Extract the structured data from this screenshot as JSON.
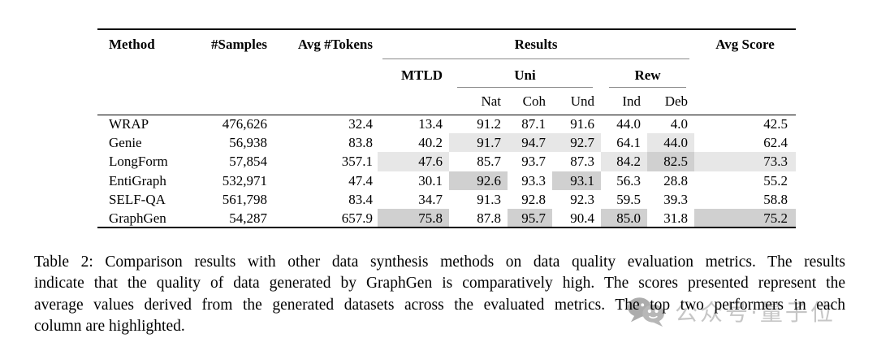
{
  "table": {
    "header": {
      "method": "Method",
      "samples": "#Samples",
      "tokens": "Avg #Tokens",
      "results": "Results",
      "avg_score": "Avg Score",
      "mtld": "MTLD",
      "uni": "Uni",
      "rew": "Rew",
      "sub": [
        "Nat",
        "Coh",
        "Und",
        "Ind",
        "Deb"
      ]
    },
    "columns": [
      "method",
      "samples",
      "tokens",
      "mtld",
      "nat",
      "coh",
      "und",
      "ind",
      "deb",
      "avg"
    ],
    "rows": [
      {
        "method": "WRAP",
        "samples": "476,626",
        "tokens": "32.4",
        "mtld": "13.4",
        "nat": "91.2",
        "coh": "87.1",
        "und": "91.6",
        "ind": "44.0",
        "deb": "4.0",
        "avg": "42.5",
        "hl": {}
      },
      {
        "method": "Genie",
        "samples": "56,938",
        "tokens": "83.8",
        "mtld": "40.2",
        "nat": "91.7",
        "coh": "94.7",
        "und": "92.7",
        "ind": "64.1",
        "deb": "44.0",
        "avg": "62.4",
        "hl": {
          "nat": 2,
          "coh": 2,
          "und": 2,
          "deb": 2
        }
      },
      {
        "method": "LongForm",
        "samples": "57,854",
        "tokens": "357.1",
        "mtld": "47.6",
        "nat": "85.7",
        "coh": "93.7",
        "und": "87.3",
        "ind": "84.2",
        "deb": "82.5",
        "avg": "73.3",
        "hl": {
          "mtld": 2,
          "ind": 2,
          "deb": 1,
          "avg": 2
        }
      },
      {
        "method": "EntiGraph",
        "samples": "532,971",
        "tokens": "47.4",
        "mtld": "30.1",
        "nat": "92.6",
        "coh": "93.3",
        "und": "93.1",
        "ind": "56.3",
        "deb": "28.8",
        "avg": "55.2",
        "hl": {
          "nat": 1,
          "und": 1
        }
      },
      {
        "method": "SELF-QA",
        "samples": "561,798",
        "tokens": "83.4",
        "mtld": "34.7",
        "nat": "91.3",
        "coh": "92.8",
        "und": "92.3",
        "ind": "59.5",
        "deb": "39.3",
        "avg": "58.8",
        "hl": {}
      },
      {
        "method": "GraphGen",
        "samples": "54,287",
        "tokens": "657.9",
        "mtld": "75.8",
        "nat": "87.8",
        "coh": "95.7",
        "und": "90.4",
        "ind": "85.0",
        "deb": "31.8",
        "avg": "75.2",
        "hl": {
          "mtld": 1,
          "coh": 1,
          "ind": 1,
          "avg": 1
        }
      }
    ]
  },
  "caption": {
    "lines": [
      "Table 2: Comparison results with other data synthesis methods on data quality evaluation metrics. The results",
      "indicate that the quality of data generated by GraphGen is comparatively high. The scores presented represent the",
      "average values derived from the generated datasets across the evaluated metrics. The top two performers in each",
      "column are highlighted."
    ]
  },
  "watermark": {
    "text": "公众号·量子位",
    "icon": "wechat-icon"
  },
  "colors": {
    "hl_first": "#d0d0d0",
    "hl_second": "#e7e7e7",
    "rule_dark": "#000000",
    "rule_light": "#8a8a8a"
  }
}
